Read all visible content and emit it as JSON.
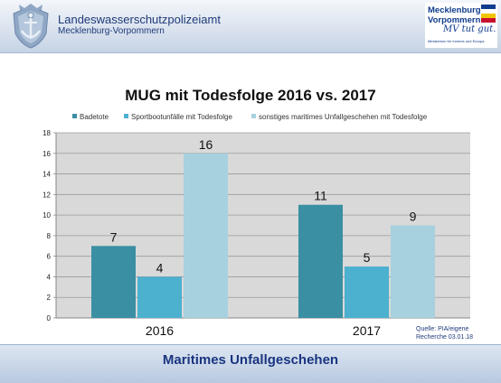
{
  "header": {
    "agency_name": "Landeswasserschutzpolizeiamt",
    "agency_region": "Mecklenburg-Vorpommern",
    "logo_line1": "Mecklenburg",
    "logo_line2": "Vorpommern",
    "logo_slogan": "MV tut gut.",
    "logo_subline": "Ministerium für Inneres und Europa"
  },
  "chart_data": {
    "type": "bar",
    "title": "MUG mit Todesfolge 2016 vs. 2017",
    "categories": [
      "2016",
      "2017"
    ],
    "series": [
      {
        "name": "Badetote",
        "values": [
          7,
          11
        ],
        "color": "#3a8fa3"
      },
      {
        "name": "Sportbootunfälle mit Todesfolge",
        "values": [
          4,
          5
        ],
        "color": "#4cb0cf"
      },
      {
        "name": "sonstiges maritimes Unfallgeschehen mit Todesfolge",
        "values": [
          16,
          9
        ],
        "color": "#a7d1de"
      }
    ],
    "ylim": [
      0,
      18
    ],
    "yticks": [
      0,
      2,
      4,
      6,
      8,
      10,
      12,
      14,
      16,
      18
    ],
    "grid": true,
    "legend_position": "top",
    "data_labels": true
  },
  "source": {
    "line1": "Quelle: PIA/eigene",
    "line2": "Recherche 03.01.18"
  },
  "footer": {
    "title": "Maritimes Unfallgeschehen"
  }
}
